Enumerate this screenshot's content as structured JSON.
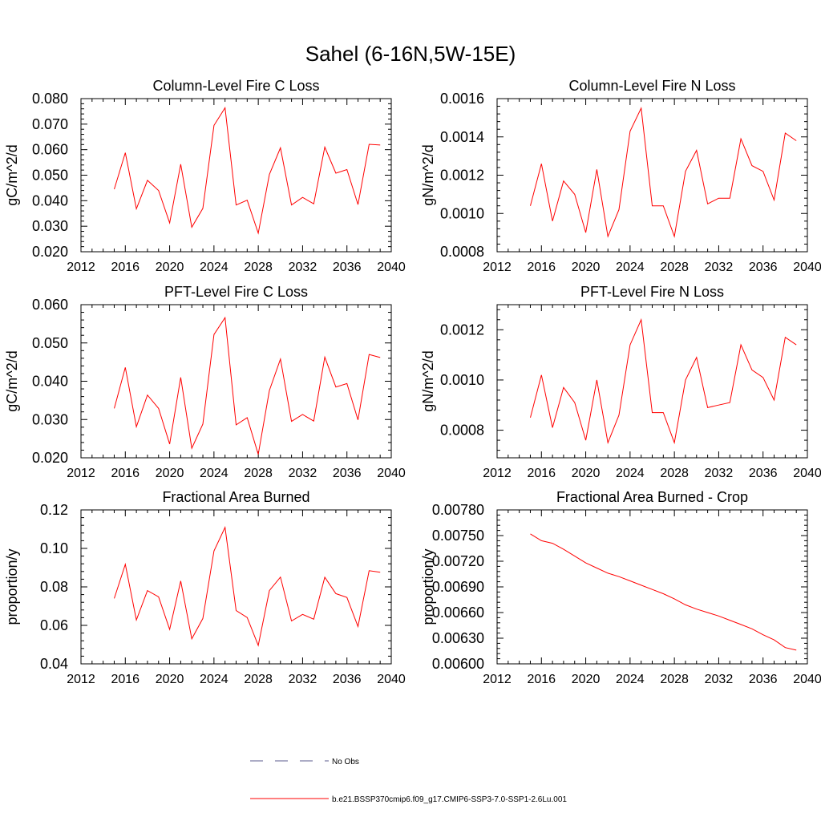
{
  "figure": {
    "title": "Sahel (6-16N,5W-15E)",
    "legend": {
      "placement": "bottom-center",
      "entries": [
        {
          "label": "No Obs",
          "color": "#5a5a8c",
          "dash": "dashed"
        },
        {
          "label": "b.e21.BSSP370cmip6.f09_g17.CMIP6-SSP3-7.0-SSP1-2.6Lu.001",
          "color": "#ff0000",
          "dash": "solid"
        }
      ]
    }
  },
  "chart_data": [
    {
      "type": "line",
      "title": "Column-Level Fire C Loss",
      "xlabel": "",
      "ylabel": "gC/m^2/d",
      "xlim": [
        2012,
        2040
      ],
      "ylim": [
        0.02,
        0.08
      ],
      "xticks": [
        2012,
        2016,
        2020,
        2024,
        2028,
        2032,
        2036,
        2040
      ],
      "xtick_labels": [
        "2012",
        "2016",
        "2020",
        "2024",
        "2028",
        "2032",
        "2036",
        "2040"
      ],
      "yticks": [
        0.02,
        0.03,
        0.04,
        0.05,
        0.06,
        0.07,
        0.08
      ],
      "ytick_labels": [
        "0.020",
        "0.030",
        "0.040",
        "0.050",
        "0.060",
        "0.070",
        "0.080"
      ],
      "color": "#ff0000",
      "x": [
        2015,
        2016,
        2017,
        2018,
        2019,
        2020,
        2021,
        2022,
        2023,
        2024,
        2025,
        2026,
        2027,
        2028,
        2029,
        2030,
        2031,
        2032,
        2033,
        2034,
        2035,
        2036,
        2037,
        2038,
        2039
      ],
      "y": [
        0.0445,
        0.0588,
        0.0368,
        0.048,
        0.044,
        0.0313,
        0.0543,
        0.0296,
        0.037,
        0.0695,
        0.0764,
        0.0383,
        0.0402,
        0.0273,
        0.0503,
        0.0607,
        0.0383,
        0.0413,
        0.0388,
        0.061,
        0.0508,
        0.0522,
        0.0385,
        0.0621,
        0.0618
      ]
    },
    {
      "type": "line",
      "title": "Column-Level Fire N Loss",
      "xlabel": "",
      "ylabel": "gN/m^2/d",
      "xlim": [
        2012,
        2040
      ],
      "ylim": [
        0.0008,
        0.0016
      ],
      "xticks": [
        2012,
        2016,
        2020,
        2024,
        2028,
        2032,
        2036,
        2040
      ],
      "xtick_labels": [
        "2012",
        "2016",
        "2020",
        "2024",
        "2028",
        "2032",
        "2036",
        "2040"
      ],
      "yticks": [
        0.0008,
        0.001,
        0.0012,
        0.0014,
        0.0016
      ],
      "ytick_labels": [
        "0.0008",
        "0.0010",
        "0.0012",
        "0.0014",
        "0.0016"
      ],
      "color": "#ff0000",
      "x": [
        2015,
        2016,
        2017,
        2018,
        2019,
        2020,
        2021,
        2022,
        2023,
        2024,
        2025,
        2026,
        2027,
        2028,
        2029,
        2030,
        2031,
        2032,
        2033,
        2034,
        2035,
        2036,
        2037,
        2038,
        2039
      ],
      "y": [
        0.00104,
        0.00126,
        0.00096,
        0.00117,
        0.0011,
        0.0009,
        0.00123,
        0.00088,
        0.00102,
        0.00143,
        0.00155,
        0.00104,
        0.00104,
        0.00088,
        0.00122,
        0.00133,
        0.00105,
        0.00108,
        0.00108,
        0.00139,
        0.00125,
        0.00122,
        0.00107,
        0.00142,
        0.00138
      ]
    },
    {
      "type": "line",
      "title": "PFT-Level Fire C Loss",
      "xlabel": "",
      "ylabel": "gC/m^2/d",
      "xlim": [
        2012,
        2040
      ],
      "ylim": [
        0.02,
        0.06
      ],
      "xticks": [
        2012,
        2016,
        2020,
        2024,
        2028,
        2032,
        2036,
        2040
      ],
      "xtick_labels": [
        "2012",
        "2016",
        "2020",
        "2024",
        "2028",
        "2032",
        "2036",
        "2040"
      ],
      "yticks": [
        0.02,
        0.03,
        0.04,
        0.05,
        0.06
      ],
      "ytick_labels": [
        "0.020",
        "0.030",
        "0.040",
        "0.050",
        "0.060"
      ],
      "color": "#ff0000",
      "x": [
        2015,
        2016,
        2017,
        2018,
        2019,
        2020,
        2021,
        2022,
        2023,
        2024,
        2025,
        2026,
        2027,
        2028,
        2029,
        2030,
        2031,
        2032,
        2033,
        2034,
        2035,
        2036,
        2037,
        2038,
        2039
      ],
      "y": [
        0.0329,
        0.0436,
        0.0281,
        0.0364,
        0.0329,
        0.0236,
        0.041,
        0.0225,
        0.0288,
        0.0522,
        0.0566,
        0.0286,
        0.0305,
        0.0209,
        0.0376,
        0.0458,
        0.0295,
        0.0313,
        0.0296,
        0.0463,
        0.0385,
        0.0394,
        0.0299,
        0.047,
        0.0462
      ]
    },
    {
      "type": "line",
      "title": "PFT-Level Fire N Loss",
      "xlabel": "",
      "ylabel": "gN/m^2/d",
      "xlim": [
        2012,
        2040
      ],
      "ylim": [
        0.00069,
        0.0013
      ],
      "xticks": [
        2012,
        2016,
        2020,
        2024,
        2028,
        2032,
        2036,
        2040
      ],
      "xtick_labels": [
        "2012",
        "2016",
        "2020",
        "2024",
        "2028",
        "2032",
        "2036",
        "2040"
      ],
      "yticks": [
        0.0008,
        0.001,
        0.0012
      ],
      "ytick_labels": [
        "0.0008",
        "0.0010",
        "0.0012"
      ],
      "color": "#ff0000",
      "x": [
        2015,
        2016,
        2017,
        2018,
        2019,
        2020,
        2021,
        2022,
        2023,
        2024,
        2025,
        2026,
        2027,
        2028,
        2029,
        2030,
        2031,
        2032,
        2033,
        2034,
        2035,
        2036,
        2037,
        2038,
        2039
      ],
      "y": [
        0.00085,
        0.00102,
        0.00081,
        0.00097,
        0.00091,
        0.00076,
        0.001,
        0.00075,
        0.00086,
        0.00114,
        0.00124,
        0.00087,
        0.00087,
        0.00075,
        0.001,
        0.00109,
        0.00089,
        0.0009,
        0.00091,
        0.00114,
        0.00104,
        0.00101,
        0.00092,
        0.00117,
        0.00114
      ]
    },
    {
      "type": "line",
      "title": "Fractional Area Burned",
      "xlabel": "",
      "ylabel": "proportion/y",
      "xlim": [
        2012,
        2040
      ],
      "ylim": [
        0.04,
        0.12
      ],
      "xticks": [
        2012,
        2016,
        2020,
        2024,
        2028,
        2032,
        2036,
        2040
      ],
      "xtick_labels": [
        "2012",
        "2016",
        "2020",
        "2024",
        "2028",
        "2032",
        "2036",
        "2040"
      ],
      "yticks": [
        0.04,
        0.06,
        0.08,
        0.1,
        0.12
      ],
      "ytick_labels": [
        "0.04",
        "0.06",
        "0.08",
        "0.10",
        "0.12"
      ],
      "color": "#ff0000",
      "x": [
        2015,
        2016,
        2017,
        2018,
        2019,
        2020,
        2021,
        2022,
        2023,
        2024,
        2025,
        2026,
        2027,
        2028,
        2029,
        2030,
        2031,
        2032,
        2033,
        2034,
        2035,
        2036,
        2037,
        2038,
        2039
      ],
      "y": [
        0.074,
        0.0917,
        0.0628,
        0.0781,
        0.0748,
        0.0579,
        0.0831,
        0.053,
        0.0636,
        0.0987,
        0.1109,
        0.0677,
        0.0641,
        0.0496,
        0.0781,
        0.0851,
        0.0623,
        0.0657,
        0.0632,
        0.085,
        0.0765,
        0.0745,
        0.0594,
        0.0884,
        0.0876
      ]
    },
    {
      "type": "line",
      "title": "Fractional Area Burned - Crop",
      "xlabel": "",
      "ylabel": "proportion/y",
      "xlim": [
        2012,
        2040
      ],
      "ylim": [
        0.006,
        0.0078
      ],
      "xticks": [
        2012,
        2016,
        2020,
        2024,
        2028,
        2032,
        2036,
        2040
      ],
      "xtick_labels": [
        "2012",
        "2016",
        "2020",
        "2024",
        "2028",
        "2032",
        "2036",
        "2040"
      ],
      "yticks": [
        0.006,
        0.0063,
        0.0066,
        0.0069,
        0.0072,
        0.0075,
        0.0078
      ],
      "ytick_labels": [
        "0.00600",
        "0.00630",
        "0.00660",
        "0.00690",
        "0.00720",
        "0.00750",
        "0.00780"
      ],
      "color": "#ff0000",
      "x": [
        2015,
        2016,
        2017,
        2018,
        2019,
        2020,
        2021,
        2022,
        2023,
        2024,
        2025,
        2026,
        2027,
        2028,
        2029,
        2030,
        2031,
        2032,
        2033,
        2034,
        2035,
        2036,
        2037,
        2038,
        2039
      ],
      "y": [
        0.00752,
        0.00744,
        0.00741,
        0.00734,
        0.00726,
        0.00718,
        0.00712,
        0.00706,
        0.00702,
        0.00697,
        0.00692,
        0.00687,
        0.00682,
        0.00676,
        0.00669,
        0.00664,
        0.0066,
        0.00656,
        0.00651,
        0.00646,
        0.00641,
        0.00634,
        0.00628,
        0.00619,
        0.00616
      ]
    }
  ]
}
